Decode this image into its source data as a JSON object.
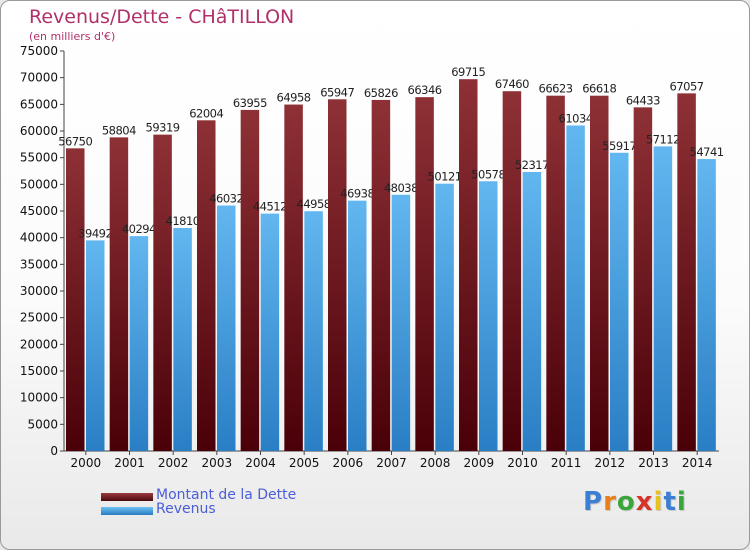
{
  "header": {
    "title": "Revenus/Dette - CHâTILLON",
    "subtitle": "(en milliers d'€)"
  },
  "colors": {
    "dette": "#7a1f25",
    "revenus": "#4aa6e6",
    "axis_text": "#111111",
    "title": "#b0306a",
    "legend_text": "#4a5ed6"
  },
  "chart_data": {
    "type": "bar",
    "categories": [
      "2000",
      "2001",
      "2002",
      "2003",
      "2004",
      "2005",
      "2006",
      "2007",
      "2008",
      "2009",
      "2010",
      "2011",
      "2012",
      "2013",
      "2014"
    ],
    "series": [
      {
        "name": "Montant de la Dette",
        "values": [
          56750,
          58804,
          59319,
          62004,
          63955,
          64958,
          65947,
          65826,
          66346,
          69715,
          67460,
          66623,
          66618,
          64433,
          67057
        ]
      },
      {
        "name": "Revenus",
        "values": [
          39492,
          40294,
          41810,
          46032,
          44512,
          44958,
          46938,
          48038,
          50121,
          50578,
          52317,
          61034,
          55917,
          57112,
          54741
        ]
      }
    ],
    "ylim": [
      0,
      75000
    ],
    "yticks": [
      0,
      5000,
      10000,
      15000,
      20000,
      25000,
      30000,
      35000,
      40000,
      45000,
      50000,
      55000,
      60000,
      65000,
      70000,
      75000
    ],
    "grid": false,
    "legend": "bottom-left"
  },
  "legend": {
    "items": [
      {
        "label": "Montant de la Dette"
      },
      {
        "label": "Revenus"
      }
    ]
  },
  "logo": {
    "letters": [
      "P",
      "r",
      "o",
      "x",
      "i",
      "t",
      "i"
    ],
    "colors": [
      "#3a7fd4",
      "#e87f1a",
      "#39a53a",
      "#d6342a",
      "#e8c21a",
      "#3a7fd4",
      "#39a53a"
    ]
  }
}
